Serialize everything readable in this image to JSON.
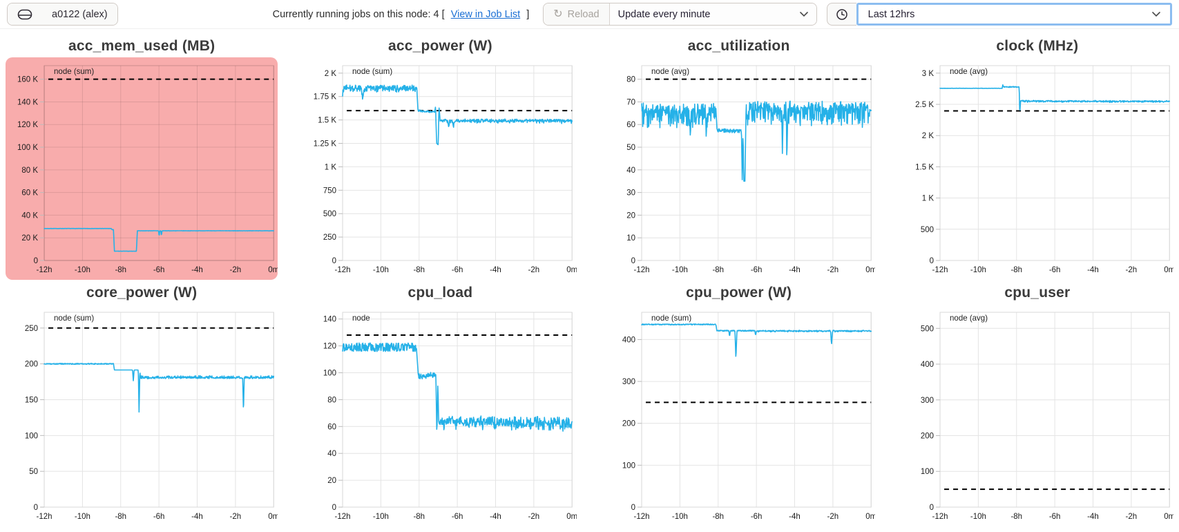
{
  "topbar": {
    "node_icon": "drive-icon",
    "node_label": "a0122 (alex)",
    "jobs_prefix": "Currently running jobs on this node: 4 [",
    "jobs_link_label": "View in Job List",
    "jobs_suffix": "]",
    "reload_label": "Reload",
    "reload_icon": "refresh-icon",
    "reload_disabled": true,
    "update_interval_value": "Update every minute",
    "time_icon": "clock-icon",
    "time_range_value": "Last 12hrs"
  },
  "colors": {
    "series_line": "#25b1e8",
    "threshold": "#000000",
    "highlight_bg": "#f8acac",
    "focus_ring": "#8cbdf0",
    "link": "#1a6fd4",
    "grid": "#e4e4e4",
    "plot_border": "#d8d8d8",
    "title_text": "#3b3b3b"
  },
  "x_axis": {
    "ticks": [
      -12,
      -10,
      -8,
      -6,
      -4,
      -2,
      0
    ],
    "labels": [
      "-12h",
      "-10h",
      "-8h",
      "-6h",
      "-4h",
      "-2h",
      "0m"
    ]
  },
  "chart_data": [
    {
      "type": "line",
      "title": "acc_mem_used (MB)",
      "legend": "node (sum)",
      "highlighted": true,
      "ylim": [
        0,
        172000
      ],
      "yticks": [
        0,
        20000,
        40000,
        60000,
        80000,
        100000,
        120000,
        140000,
        160000
      ],
      "ytick_labels": [
        "0",
        "20 K",
        "40 K",
        "60 K",
        "80 K",
        "100 K",
        "120 K",
        "140 K",
        "160 K"
      ],
      "threshold": 160000,
      "series_points": [
        [
          -12,
          28200
        ],
        [
          -8.5,
          28200
        ],
        [
          -8.45,
          27200
        ],
        [
          -8.38,
          27200
        ],
        [
          -8.33,
          8200
        ],
        [
          -7.18,
          8200
        ],
        [
          -7.13,
          26200
        ],
        [
          -6.02,
          26200
        ],
        [
          -5.99,
          21200
        ],
        [
          -5.96,
          26200
        ],
        [
          -5.9,
          26200
        ],
        [
          -5.87,
          21800
        ],
        [
          -5.84,
          26200
        ],
        [
          0,
          26200
        ]
      ],
      "noise": [
        {
          "t0": -12,
          "t1": 0,
          "amp": 100,
          "mode": "sym"
        }
      ]
    },
    {
      "type": "line",
      "title": "acc_power (W)",
      "legend": "node (sum)",
      "highlighted": false,
      "ylim": [
        0,
        2080
      ],
      "yticks": [
        0,
        250,
        500,
        750,
        1000,
        1250,
        1500,
        1750,
        2000
      ],
      "ytick_labels": [
        "0",
        "250",
        "500",
        "750",
        "1 K",
        "1.25 K",
        "1.5 K",
        "1.75 K",
        "2 K"
      ],
      "threshold": 1600,
      "series_points": [
        [
          -12,
          1800
        ],
        [
          -11.95,
          1850
        ],
        [
          -11.05,
          1850
        ],
        [
          -10.95,
          1760
        ],
        [
          -10.85,
          1850
        ],
        [
          -8.12,
          1848
        ],
        [
          -8.06,
          1600
        ],
        [
          -7.6,
          1588
        ],
        [
          -7.18,
          1592
        ],
        [
          -7.14,
          1645
        ],
        [
          -7.08,
          1250
        ],
        [
          -7.0,
          1235
        ],
        [
          -6.96,
          1645
        ],
        [
          -6.9,
          1502
        ],
        [
          -6.5,
          1500
        ],
        [
          -6.45,
          1428
        ],
        [
          -6.4,
          1500
        ],
        [
          -6.25,
          1500
        ],
        [
          -6.2,
          1432
        ],
        [
          -6.15,
          1500
        ],
        [
          0,
          1498
        ]
      ],
      "noise": [
        {
          "t0": -12,
          "t1": -8.12,
          "amp": 25,
          "mode": "sym"
        },
        {
          "t0": -12,
          "t1": -8.12,
          "amp": 30,
          "mode": "down"
        },
        {
          "t0": -8.06,
          "t1": -7.18,
          "amp": 10,
          "mode": "sym"
        },
        {
          "t0": -6.9,
          "t1": 0,
          "amp": 12,
          "mode": "sym"
        },
        {
          "t0": -6.9,
          "t1": 0,
          "amp": 25,
          "mode": "down"
        }
      ]
    },
    {
      "type": "line",
      "title": "acc_utilization",
      "legend": "node (avg)",
      "highlighted": false,
      "ylim": [
        0,
        86
      ],
      "yticks": [
        0,
        10,
        20,
        30,
        40,
        50,
        60,
        70,
        80
      ],
      "ytick_labels": [
        "0",
        "10",
        "20",
        "30",
        "40",
        "50",
        "60",
        "70",
        "80"
      ],
      "threshold": 80,
      "series_points": [
        [
          -12,
          67.5
        ],
        [
          -9.5,
          67.5
        ],
        [
          -9.45,
          55
        ],
        [
          -9.4,
          67.5
        ],
        [
          -8.66,
          67.5
        ],
        [
          -8.62,
          56
        ],
        [
          -8.58,
          67.5
        ],
        [
          -8.12,
          67.5
        ],
        [
          -8.06,
          57.5
        ],
        [
          -6.78,
          57
        ],
        [
          -6.74,
          35
        ],
        [
          -6.7,
          57
        ],
        [
          -6.66,
          35
        ],
        [
          -6.6,
          35
        ],
        [
          -6.54,
          68.5
        ],
        [
          -4.68,
          68.5
        ],
        [
          -4.64,
          48
        ],
        [
          -4.6,
          68.5
        ],
        [
          -4.44,
          68.5
        ],
        [
          -4.4,
          50
        ],
        [
          -4.36,
          68.5
        ],
        [
          0,
          68.5
        ]
      ],
      "noise": [
        {
          "t0": -12,
          "t1": -8.12,
          "amp": 2,
          "mode": "sym"
        },
        {
          "t0": -12,
          "t1": -8.12,
          "amp": 8,
          "mode": "down"
        },
        {
          "t0": -8.06,
          "t1": -6.78,
          "amp": 0.8,
          "mode": "sym"
        },
        {
          "t0": -6.54,
          "t1": 0,
          "amp": 2,
          "mode": "sym"
        },
        {
          "t0": -6.54,
          "t1": 0,
          "amp": 8,
          "mode": "down"
        }
      ]
    },
    {
      "type": "line",
      "title": "clock (MHz)",
      "legend": "node (avg)",
      "highlighted": false,
      "ylim": [
        0,
        3120
      ],
      "yticks": [
        0,
        500,
        1000,
        1500,
        2000,
        2500,
        3000
      ],
      "ytick_labels": [
        "0",
        "500",
        "1 K",
        "1.5 K",
        "2 K",
        "2.5 K",
        "3 K"
      ],
      "threshold": 2395,
      "series_points": [
        [
          -12,
          2757
        ],
        [
          -8.75,
          2757
        ],
        [
          -8.72,
          2815
        ],
        [
          -8.68,
          2778
        ],
        [
          -8.0,
          2780
        ],
        [
          -7.86,
          2783
        ],
        [
          -7.83,
          2345
        ],
        [
          -7.79,
          2555
        ],
        [
          0,
          2552
        ]
      ],
      "noise": [
        {
          "t0": -12,
          "t1": -8.75,
          "amp": 2,
          "mode": "sym"
        },
        {
          "t0": -8.68,
          "t1": -7.86,
          "amp": 8,
          "mode": "sym"
        },
        {
          "t0": -7.79,
          "t1": 0,
          "amp": 10,
          "mode": "sym"
        },
        {
          "t0": -7.79,
          "t1": 0,
          "amp": 14,
          "mode": "down"
        }
      ]
    },
    {
      "type": "line",
      "title": "core_power (W)",
      "legend": "node (sum)",
      "highlighted": false,
      "ylim": [
        0,
        272
      ],
      "yticks": [
        0,
        50,
        100,
        150,
        200,
        250
      ],
      "ytick_labels": [
        "0",
        "50",
        "100",
        "150",
        "200",
        "250"
      ],
      "threshold": 250,
      "series_points": [
        [
          -12,
          200
        ],
        [
          -8.38,
          200
        ],
        [
          -8.33,
          191.5
        ],
        [
          -7.38,
          191.5
        ],
        [
          -7.34,
          176
        ],
        [
          -7.3,
          191.5
        ],
        [
          -7.08,
          191.5
        ],
        [
          -7.04,
          131
        ],
        [
          -7.0,
          191.5
        ],
        [
          -6.97,
          180
        ],
        [
          -1.62,
          180
        ],
        [
          -1.58,
          128
        ],
        [
          -1.54,
          180
        ],
        [
          0,
          180
        ]
      ],
      "noise": [
        {
          "t0": -12,
          "t1": -8.38,
          "amp": 0.7,
          "mode": "sym"
        },
        {
          "t0": -6.97,
          "t1": 0,
          "amp": 0.8,
          "mode": "sym"
        },
        {
          "t0": -6.97,
          "t1": 0,
          "amp": 3,
          "mode": "up"
        }
      ]
    },
    {
      "type": "line",
      "title": "cpu_load",
      "legend": "node",
      "highlighted": false,
      "ylim": [
        0,
        145
      ],
      "yticks": [
        0,
        20,
        40,
        60,
        80,
        100,
        120,
        140
      ],
      "ytick_labels": [
        "0",
        "20",
        "40",
        "60",
        "80",
        "100",
        "120",
        "140"
      ],
      "threshold": 128,
      "series_points": [
        [
          -12,
          119
        ],
        [
          -8.14,
          119
        ],
        [
          -8.04,
          97.5
        ],
        [
          -7.7,
          97
        ],
        [
          -7.4,
          98.5
        ],
        [
          -7.12,
          98
        ],
        [
          -7.07,
          52
        ],
        [
          -7.02,
          93
        ],
        [
          -6.98,
          65
        ],
        [
          0,
          64
        ]
      ],
      "noise": [
        {
          "t0": -12,
          "t1": -8.14,
          "amp": 3.2,
          "mode": "sym"
        },
        {
          "t0": -8.04,
          "t1": -7.12,
          "amp": 1.8,
          "mode": "sym"
        },
        {
          "t0": -6.98,
          "t1": 0,
          "amp": 3.2,
          "mode": "sym"
        },
        {
          "t0": -6.98,
          "t1": 0,
          "amp": 5,
          "mode": "down"
        }
      ]
    },
    {
      "type": "line",
      "title": "cpu_power (W)",
      "legend": "node (sum)",
      "highlighted": false,
      "ylim": [
        0,
        465
      ],
      "yticks": [
        0,
        100,
        200,
        300,
        400
      ],
      "ytick_labels": [
        "0",
        "100",
        "200",
        "300",
        "400"
      ],
      "threshold": 250,
      "series_points": [
        [
          -12,
          436
        ],
        [
          -8.12,
          436
        ],
        [
          -8.07,
          421
        ],
        [
          -7.44,
          421
        ],
        [
          -7.4,
          407
        ],
        [
          -7.36,
          421
        ],
        [
          -7.12,
          421
        ],
        [
          -7.07,
          352
        ],
        [
          -7.02,
          421
        ],
        [
          -6.08,
          421
        ],
        [
          -6.04,
          410
        ],
        [
          -6.0,
          421
        ],
        [
          -2.12,
          421
        ],
        [
          -2.07,
          388
        ],
        [
          -2.02,
          421
        ],
        [
          0,
          421
        ]
      ],
      "noise": [
        {
          "t0": -12,
          "t1": 0,
          "amp": 1.2,
          "mode": "sym"
        },
        {
          "t0": -6.0,
          "t1": 0,
          "amp": 2,
          "mode": "down"
        }
      ]
    },
    {
      "type": "line",
      "title": "cpu_user",
      "legend": "node (avg)",
      "highlighted": false,
      "ylim": [
        0,
        545
      ],
      "yticks": [
        0,
        100,
        200,
        300,
        400,
        500
      ],
      "ytick_labels": [
        "0",
        "100",
        "200",
        "300",
        "400",
        "500"
      ],
      "threshold": 50,
      "series_points": [],
      "noise": []
    }
  ]
}
